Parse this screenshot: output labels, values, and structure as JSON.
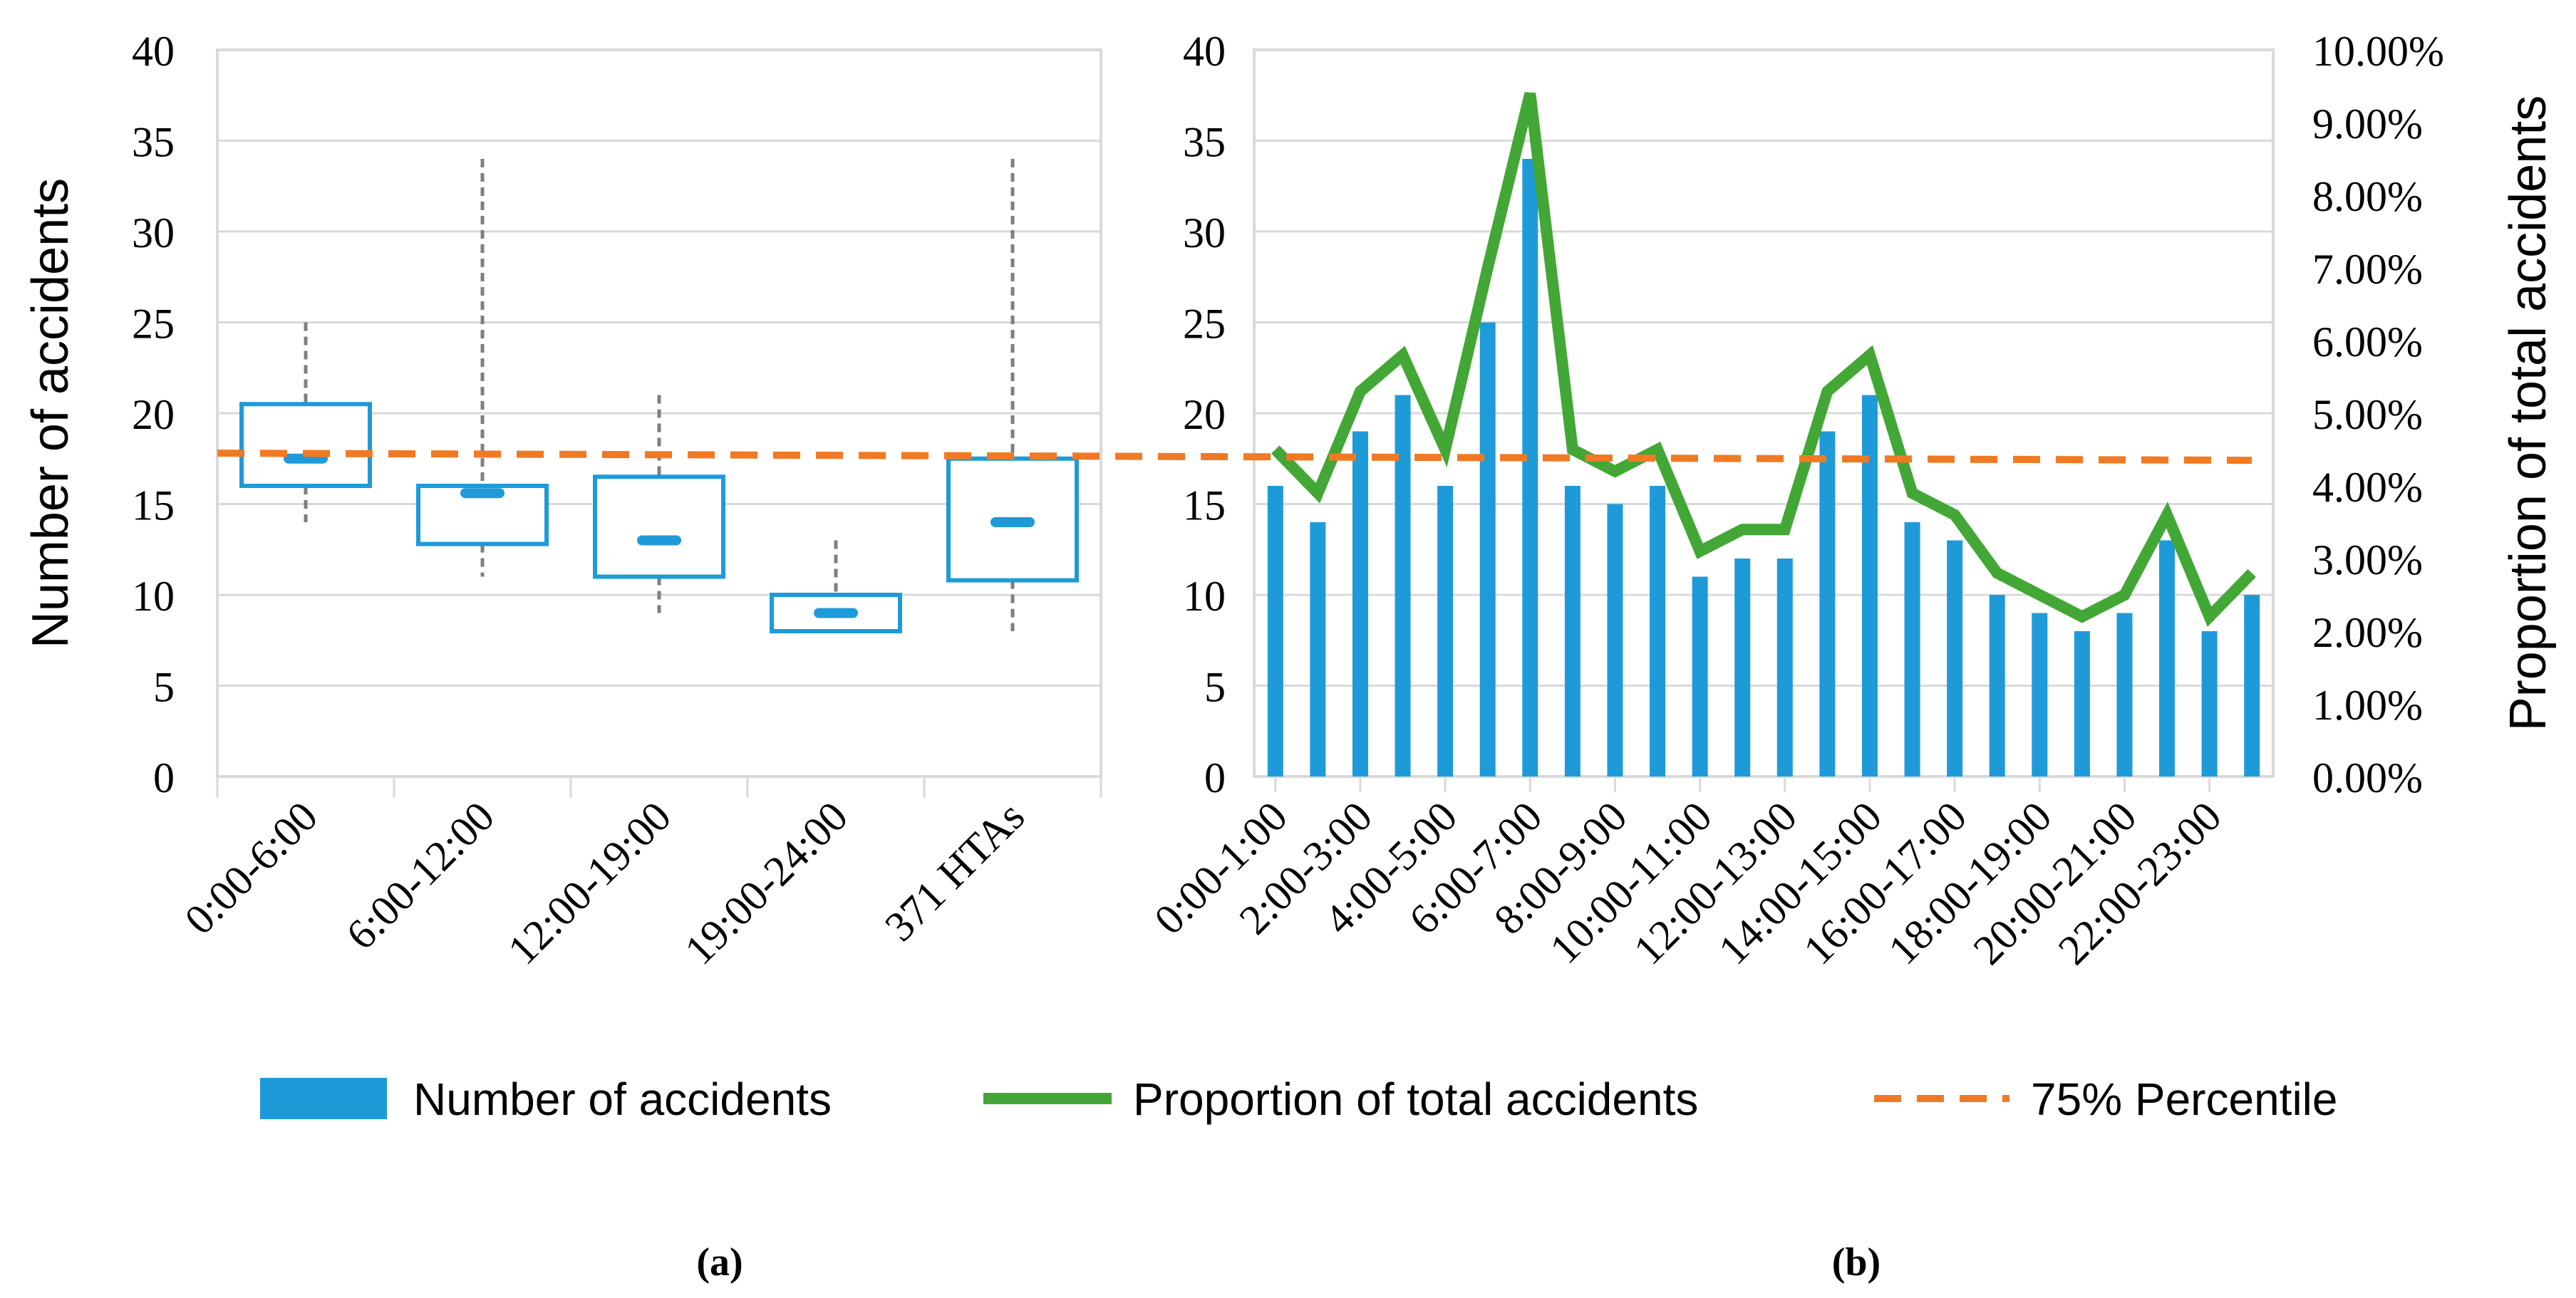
{
  "colors": {
    "bar": "#1f9ad9",
    "box": "#1f9ad9",
    "line": "#43a736",
    "percentile": "#f07a24",
    "grid": "#d9d9d9",
    "whisker": "#7f7f7f",
    "axis_text": "#000000"
  },
  "legend": {
    "bar_label": "Number of accidents",
    "line_label": "Proportion of total accidents",
    "percentile_label": "75% Percentile"
  },
  "panel_labels": {
    "a": "(a)",
    "b": "(b)"
  },
  "chart_data": [
    {
      "type": "box",
      "id": "a",
      "ylabel": "Number of accidents",
      "ylim": [
        0,
        40
      ],
      "yticks": [
        0,
        5,
        10,
        15,
        20,
        25,
        30,
        35,
        40
      ],
      "grid": true,
      "percentile_75": 17.8,
      "boxes": [
        {
          "category": "0:00-6:00",
          "whisker_low": 14,
          "q1": 16,
          "median": 17.5,
          "q3": 20.5,
          "whisker_high": 25
        },
        {
          "category": "6:00-12:00",
          "whisker_low": 11,
          "q1": 12.8,
          "median": 15.6,
          "q3": 16,
          "whisker_high": 34
        },
        {
          "category": "12:00-19:00",
          "whisker_low": 9,
          "q1": 11,
          "median": 13,
          "q3": 16.5,
          "whisker_high": 21
        },
        {
          "category": "19:00-24:00",
          "whisker_low": 8,
          "q1": 8,
          "median": 9,
          "q3": 10,
          "whisker_high": 13
        },
        {
          "category": "371 HTAs",
          "whisker_low": 8,
          "q1": 10.8,
          "median": 14,
          "q3": 17.5,
          "whisker_high": 34
        }
      ]
    },
    {
      "type": "bar+line",
      "id": "b",
      "ylabel_right": "Proportion of total accidents",
      "ylim": [
        0,
        40
      ],
      "yticks": [
        0,
        5,
        10,
        15,
        20,
        25,
        30,
        35,
        40
      ],
      "y2lim": [
        0,
        10
      ],
      "y2ticks": [
        "0.00%",
        "1.00%",
        "2.00%",
        "3.00%",
        "4.00%",
        "5.00%",
        "6.00%",
        "7.00%",
        "8.00%",
        "9.00%",
        "10.00%"
      ],
      "grid": true,
      "percentile_75": 17.8,
      "categories": [
        "0:00-1:00",
        "1:00-2:00",
        "2:00-3:00",
        "3:00-4:00",
        "4:00-5:00",
        "5:00-6:00",
        "6:00-7:00",
        "7:00-8:00",
        "8:00-9:00",
        "9:00-10:00",
        "10:00-11:00",
        "11:00-12:00",
        "12:00-13:00",
        "13:00-14:00",
        "14:00-15:00",
        "15:00-16:00",
        "16:00-17:00",
        "17:00-18:00",
        "18:00-19:00",
        "19:00-20:00",
        "20:00-21:00",
        "21:00-22:00",
        "22:00-23:00",
        "23:00-24:00"
      ],
      "tick_labels_shown": [
        "0:00-1:00",
        "2:00-3:00",
        "4:00-5:00",
        "6:00-7:00",
        "8:00-9:00",
        "10:00-11:00",
        "12:00-13:00",
        "14:00-15:00",
        "16:00-17:00",
        "18:00-19:00",
        "20:00-21:00",
        "22:00-23:00"
      ],
      "series": [
        {
          "name": "Number of accidents",
          "type": "bar",
          "axis": "left",
          "values": [
            16,
            14,
            19,
            21,
            16,
            25,
            34,
            16,
            15,
            16,
            11,
            12,
            12,
            19,
            21,
            14,
            13,
            10,
            9,
            8,
            9,
            13,
            8,
            10
          ]
        },
        {
          "name": "Proportion of total accidents",
          "type": "line",
          "axis": "right",
          "values": [
            4.5,
            3.9,
            5.3,
            5.8,
            4.5,
            7.0,
            9.4,
            4.5,
            4.2,
            4.5,
            3.1,
            3.4,
            3.4,
            5.3,
            5.8,
            3.9,
            3.6,
            2.8,
            2.5,
            2.2,
            2.5,
            3.6,
            2.2,
            2.8
          ]
        }
      ]
    }
  ]
}
